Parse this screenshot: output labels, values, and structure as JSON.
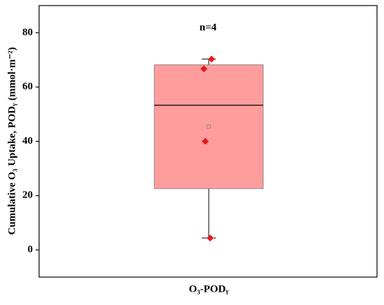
{
  "chart_data": {
    "type": "box",
    "y_label": "Cumulative O₃ Uptake, PODᵧ (mmol·m⁻²)",
    "annotation": "n=4",
    "categories": [
      "O₃-PODᵧ"
    ],
    "whisker_low": 4.4,
    "q1": 22.6,
    "median": 53.3,
    "q3": 68.2,
    "whisker_high": 70.3,
    "mean": 45.4,
    "points": [
      70.3,
      66.7,
      40,
      4.4
    ],
    "box_color": "#ff9d9d",
    "point_color": "#e8191c",
    "ylim": [
      -10,
      90
    ],
    "yticks": [
      0,
      20,
      40,
      60,
      80
    ]
  }
}
